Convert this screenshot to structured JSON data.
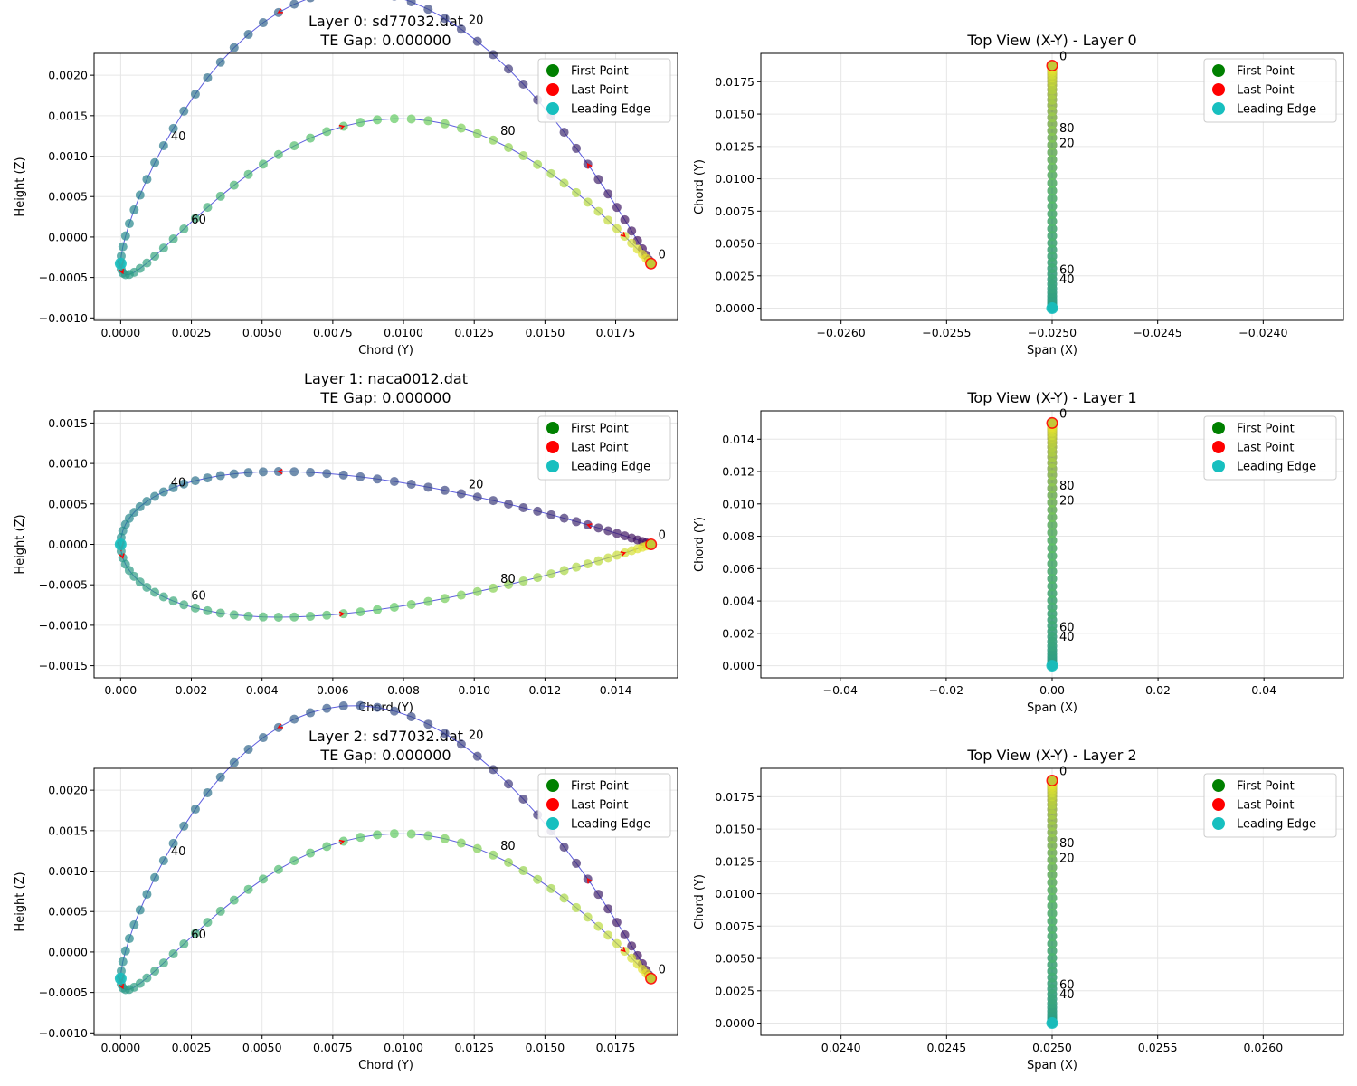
{
  "figure": {
    "title": ""
  },
  "legend_labels": [
    "First Point",
    "Last Point",
    "Leading Edge"
  ],
  "colors": {
    "first_point": "#008000",
    "last_point": "#ff0000",
    "leading_edge": "#17bfbf",
    "profile_line": "#3535d6",
    "arrow": "#ff0000",
    "grid": "#e6e6e6",
    "colormap": [
      "#440154",
      "#3b528b",
      "#21918c",
      "#5ec962",
      "#fde725"
    ]
  },
  "chart_data": [
    {
      "type": "scatter",
      "view": "profile",
      "title": "Layer 0: sd77032.dat",
      "subtitle": "TE Gap: 0.000000",
      "xlabel": "Chord (Y)",
      "ylabel": "Height (Z)",
      "airfoil": "sd77032",
      "chord": 0.01875,
      "n_points": 99,
      "xlim": [
        -0.00094,
        0.01969
      ],
      "ylim": [
        -0.00103,
        0.00227
      ],
      "xticks": [
        0,
        0.0025,
        0.005,
        0.0075,
        0.01,
        0.0125,
        0.015,
        0.0175
      ],
      "xtick_labels": [
        "0.0000",
        "0.0025",
        "0.0050",
        "0.0075",
        "0.0100",
        "0.0125",
        "0.0150",
        "0.0175"
      ],
      "yticks": [
        -0.001,
        -0.0005,
        0,
        0.0005,
        0.001,
        0.0015,
        0.002
      ],
      "ytick_labels": [
        "−0.0010",
        "−0.0005",
        "0.0000",
        "0.0005",
        "0.0010",
        "0.0015",
        "0.0020"
      ],
      "point_labels": [
        "0",
        "20",
        "40",
        "60",
        "80"
      ],
      "legend": [
        "First Point",
        "Last Point",
        "Leading Edge"
      ],
      "legend_position": "upper right",
      "grid": true
    },
    {
      "type": "scatter",
      "view": "top",
      "title": "Top View (X-Y) - Layer 0",
      "xlabel": "Span (X)",
      "ylabel": "Chord (Y)",
      "airfoil": "sd77032",
      "chord": 0.01875,
      "span_x": -0.025,
      "n_points": 99,
      "xlim": [
        -0.02638,
        -0.02362
      ],
      "ylim": [
        -0.00094,
        0.01969
      ],
      "xticks": [
        -0.026,
        -0.0255,
        -0.025,
        -0.0245,
        -0.024
      ],
      "xtick_labels": [
        "−0.0260",
        "−0.0255",
        "−0.0250",
        "−0.0245",
        "−0.0240"
      ],
      "yticks": [
        0,
        0.0025,
        0.005,
        0.0075,
        0.01,
        0.0125,
        0.015,
        0.0175
      ],
      "ytick_labels": [
        "0.0000",
        "0.0025",
        "0.0050",
        "0.0075",
        "0.0100",
        "0.0125",
        "0.0150",
        "0.0175"
      ],
      "point_labels": [
        "0",
        "20",
        "40",
        "60",
        "80"
      ],
      "legend": [
        "First Point",
        "Last Point",
        "Leading Edge"
      ],
      "legend_position": "upper right",
      "grid": true
    },
    {
      "type": "scatter",
      "view": "profile",
      "title": "Layer 1: naca0012.dat",
      "subtitle": "TE Gap: 0.000000",
      "xlabel": "Chord (Y)",
      "ylabel": "Height (Z)",
      "airfoil": "naca0012",
      "chord": 0.015,
      "n_points": 99,
      "xlim": [
        -0.00075,
        0.01575
      ],
      "ylim": [
        -0.00165,
        0.00165
      ],
      "xticks": [
        0,
        0.002,
        0.004,
        0.006,
        0.008,
        0.01,
        0.012,
        0.014
      ],
      "xtick_labels": [
        "0.000",
        "0.002",
        "0.004",
        "0.006",
        "0.008",
        "0.010",
        "0.012",
        "0.014"
      ],
      "yticks": [
        -0.0015,
        -0.001,
        -0.0005,
        0,
        0.0005,
        0.001,
        0.0015
      ],
      "ytick_labels": [
        "−0.0015",
        "−0.0010",
        "−0.0005",
        "0.0000",
        "0.0005",
        "0.0010",
        "0.0015"
      ],
      "point_labels": [
        "0",
        "20",
        "40",
        "60",
        "80"
      ],
      "legend": [
        "First Point",
        "Last Point",
        "Leading Edge"
      ],
      "legend_position": "upper right",
      "grid": true
    },
    {
      "type": "scatter",
      "view": "top",
      "title": "Top View (X-Y) - Layer 1",
      "xlabel": "Span (X)",
      "ylabel": "Chord (Y)",
      "airfoil": "naca0012",
      "chord": 0.015,
      "span_x": 0,
      "n_points": 99,
      "xlim": [
        -0.055,
        0.055
      ],
      "ylim": [
        -0.00075,
        0.01575
      ],
      "xticks": [
        -0.04,
        -0.02,
        0,
        0.02,
        0.04
      ],
      "xtick_labels": [
        "−0.04",
        "−0.02",
        "0.00",
        "0.02",
        "0.04"
      ],
      "yticks": [
        0,
        0.002,
        0.004,
        0.006,
        0.008,
        0.01,
        0.012,
        0.014
      ],
      "ytick_labels": [
        "0.000",
        "0.002",
        "0.004",
        "0.006",
        "0.008",
        "0.010",
        "0.012",
        "0.014"
      ],
      "point_labels": [
        "0",
        "20",
        "40",
        "60",
        "80"
      ],
      "legend": [
        "First Point",
        "Last Point",
        "Leading Edge"
      ],
      "legend_position": "upper right",
      "grid": true
    },
    {
      "type": "scatter",
      "view": "profile",
      "title": "Layer 2: sd77032.dat",
      "subtitle": "TE Gap: 0.000000",
      "xlabel": "Chord (Y)",
      "ylabel": "Height (Z)",
      "airfoil": "sd77032",
      "chord": 0.01875,
      "n_points": 99,
      "xlim": [
        -0.00094,
        0.01969
      ],
      "ylim": [
        -0.00103,
        0.00227
      ],
      "xticks": [
        0,
        0.0025,
        0.005,
        0.0075,
        0.01,
        0.0125,
        0.015,
        0.0175
      ],
      "xtick_labels": [
        "0.0000",
        "0.0025",
        "0.0050",
        "0.0075",
        "0.0100",
        "0.0125",
        "0.0150",
        "0.0175"
      ],
      "yticks": [
        -0.001,
        -0.0005,
        0,
        0.0005,
        0.001,
        0.0015,
        0.002
      ],
      "ytick_labels": [
        "−0.0010",
        "−0.0005",
        "0.0000",
        "0.0005",
        "0.0010",
        "0.0015",
        "0.0020"
      ],
      "point_labels": [
        "0",
        "20",
        "40",
        "60",
        "80"
      ],
      "legend": [
        "First Point",
        "Last Point",
        "Leading Edge"
      ],
      "legend_position": "upper right",
      "grid": true
    },
    {
      "type": "scatter",
      "view": "top",
      "title": "Top View (X-Y) - Layer 2",
      "xlabel": "Span (X)",
      "ylabel": "Chord (Y)",
      "airfoil": "sd77032",
      "chord": 0.01875,
      "span_x": 0.025,
      "n_points": 99,
      "xlim": [
        0.02362,
        0.02638
      ],
      "ylim": [
        -0.00094,
        0.01969
      ],
      "xticks": [
        0.024,
        0.0245,
        0.025,
        0.0255,
        0.026
      ],
      "xtick_labels": [
        "0.0240",
        "0.0245",
        "0.0250",
        "0.0255",
        "0.0260"
      ],
      "yticks": [
        0,
        0.0025,
        0.005,
        0.0075,
        0.01,
        0.0125,
        0.015,
        0.0175
      ],
      "ytick_labels": [
        "0.0000",
        "0.0025",
        "0.0050",
        "0.0075",
        "0.0100",
        "0.0125",
        "0.0150",
        "0.0175"
      ],
      "point_labels": [
        "0",
        "20",
        "40",
        "60",
        "80"
      ],
      "legend": [
        "First Point",
        "Last Point",
        "Leading Edge"
      ],
      "legend_position": "upper right",
      "grid": true
    }
  ]
}
